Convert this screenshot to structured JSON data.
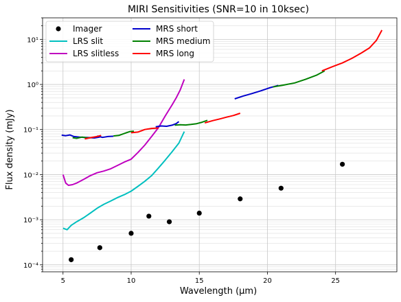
{
  "chart_data": {
    "type": "line",
    "title": "MIRI Sensitivities (SNR=10 in 10ksec)",
    "xlabel": "Wavelength (μm)",
    "ylabel": "Flux density (mJy)",
    "xlim": [
      3.5,
      29.5
    ],
    "ylim": [
      7e-05,
      30
    ],
    "yscale": "log",
    "grid": "both (major and minor)",
    "legend_position": "top-left",
    "x_ticks": [
      5,
      10,
      15,
      20,
      25
    ],
    "x_tick_labels": [
      "5",
      "10",
      "15",
      "20",
      "25"
    ],
    "y_ticks": [
      0.0001,
      0.001,
      0.01,
      0.1,
      1,
      10
    ],
    "y_tick_labels": [
      "10⁻⁴",
      "10⁻³",
      "10⁻²",
      "10⁻¹",
      "10⁰",
      "10¹"
    ],
    "series": [
      {
        "name": "Imager",
        "style": "points",
        "color": "#000000",
        "x": [
          5.6,
          7.7,
          10.0,
          11.3,
          12.8,
          15.0,
          18.0,
          21.0,
          25.5
        ],
        "y": [
          0.00013,
          0.00024,
          0.0005,
          0.0012,
          0.0009,
          0.0014,
          0.0029,
          0.005,
          0.017
        ]
      },
      {
        "name": "LRS slit",
        "style": "line",
        "color": "#00bfbf",
        "x": [
          5.0,
          5.3,
          5.6,
          6.0,
          6.5,
          7.0,
          7.5,
          8.0,
          8.5,
          9.0,
          9.5,
          10.0,
          10.5,
          11.0,
          11.5,
          12.0,
          12.5,
          13.0,
          13.5,
          13.9
        ],
        "y": [
          0.00065,
          0.0006,
          0.00075,
          0.0009,
          0.0011,
          0.0014,
          0.0018,
          0.0022,
          0.0026,
          0.0031,
          0.0036,
          0.0043,
          0.0055,
          0.0071,
          0.0095,
          0.014,
          0.021,
          0.032,
          0.05,
          0.09
        ]
      },
      {
        "name": "LRS slitless",
        "style": "line",
        "color": "#bf00bf",
        "x": [
          5.0,
          5.2,
          5.4,
          5.7,
          6.0,
          6.5,
          7.0,
          7.5,
          8.0,
          8.5,
          9.0,
          9.5,
          10.0,
          10.5,
          11.0,
          11.5,
          12.0,
          12.5,
          13.0,
          13.3,
          13.6,
          13.9
        ],
        "y": [
          0.01,
          0.0065,
          0.0058,
          0.006,
          0.0065,
          0.0078,
          0.0095,
          0.011,
          0.012,
          0.0135,
          0.016,
          0.019,
          0.022,
          0.031,
          0.045,
          0.07,
          0.11,
          0.2,
          0.35,
          0.5,
          0.75,
          1.3
        ]
      },
      {
        "name": "MRS short",
        "style": "line",
        "color": "#0000cc",
        "segments": [
          {
            "x": [
              4.9,
              5.2,
              5.5,
              5.8,
              6.2,
              6.6,
              7.0,
              7.3,
              7.7
            ],
            "y": [
              0.075,
              0.073,
              0.076,
              0.07,
              0.068,
              0.067,
              0.066,
              0.065,
              0.068
            ]
          },
          {
            "x": [
              7.5,
              7.9,
              8.3,
              8.7
            ],
            "y": [
              0.072,
              0.067,
              0.07,
              0.071
            ]
          },
          {
            "x": [
              11.8,
              12.2,
              12.6,
              13.0,
              13.3,
              13.5
            ],
            "y": [
              0.115,
              0.12,
              0.118,
              0.125,
              0.135,
              0.15
            ]
          },
          {
            "x": [
              17.6,
              18.2,
              18.8,
              19.5,
              20.2,
              20.8
            ],
            "y": [
              0.48,
              0.55,
              0.62,
              0.72,
              0.85,
              0.95
            ]
          }
        ]
      },
      {
        "name": "MRS medium",
        "style": "line",
        "color": "#008000",
        "segments": [
          {
            "x": [
              5.7,
              6.0,
              6.4,
              6.7,
              7.0
            ],
            "y": [
              0.066,
              0.064,
              0.068,
              0.066,
              0.065
            ]
          },
          {
            "x": [
              8.7,
              9.1,
              9.5,
              9.9,
              10.2
            ],
            "y": [
              0.072,
              0.074,
              0.082,
              0.09,
              0.092
            ]
          },
          {
            "x": [
              13.2,
              13.6,
              14.0,
              14.4,
              14.8,
              15.2,
              15.6
            ],
            "y": [
              0.125,
              0.128,
              0.126,
              0.13,
              0.135,
              0.145,
              0.16
            ]
          },
          {
            "x": [
              20.4,
              21.2,
              22.0,
              22.8,
              23.6,
              24.2
            ],
            "y": [
              0.88,
              0.97,
              1.08,
              1.3,
              1.6,
              2.0
            ]
          }
        ]
      },
      {
        "name": "MRS long",
        "style": "line",
        "color": "#ff0000",
        "segments": [
          {
            "x": [
              6.6,
              7.0,
              7.5,
              7.8
            ],
            "y": [
              0.062,
              0.066,
              0.07,
              0.074
            ]
          },
          {
            "x": [
              10.0,
              10.5,
              11.0,
              11.5,
              12.0
            ],
            "y": [
              0.085,
              0.088,
              0.1,
              0.106,
              0.108
            ]
          },
          {
            "x": [
              15.4,
              16.0,
              16.5,
              17.0,
              17.5,
              18.0
            ],
            "y": [
              0.14,
              0.158,
              0.172,
              0.188,
              0.205,
              0.23
            ]
          },
          {
            "x": [
              24.0,
              24.8,
              25.5,
              26.2,
              26.9,
              27.5,
              28.0,
              28.4
            ],
            "y": [
              2.0,
              2.5,
              3.0,
              3.8,
              5.0,
              6.5,
              9.5,
              16
            ]
          }
        ]
      }
    ],
    "legend": [
      {
        "label": "Imager",
        "marker": "point",
        "color": "#000000"
      },
      {
        "label": "LRS slit",
        "marker": "line",
        "color": "#00bfbf"
      },
      {
        "label": "LRS slitless",
        "marker": "line",
        "color": "#bf00bf"
      },
      {
        "label": "MRS short",
        "marker": "line",
        "color": "#0000cc"
      },
      {
        "label": "MRS medium",
        "marker": "line",
        "color": "#008000"
      },
      {
        "label": "MRS long",
        "marker": "line",
        "color": "#ff0000"
      }
    ]
  }
}
